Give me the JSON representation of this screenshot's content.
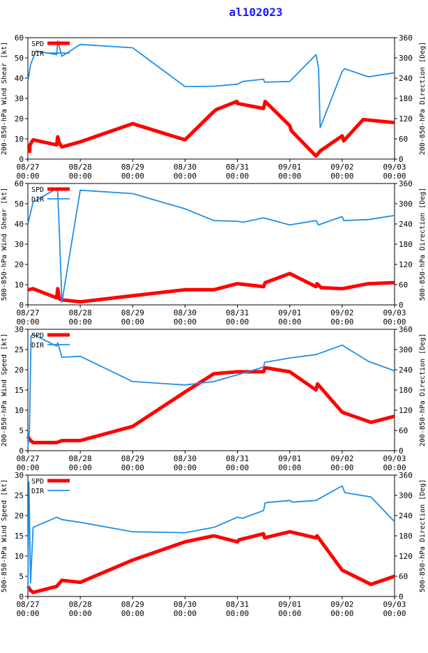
{
  "title": "al102023",
  "colors": {
    "spd": "#ff0000",
    "dir": "#1e8fe6",
    "title": "#1a1aff",
    "axis": "#000000"
  },
  "legend": {
    "spd": "SPD",
    "dir": "DIR"
  },
  "x_ticks": [
    {
      "d": 0,
      "l1": "08/27",
      "l2": "00:00"
    },
    {
      "d": 1,
      "l1": "08/28",
      "l2": "00:00"
    },
    {
      "d": 2,
      "l1": "08/29",
      "l2": "00:00"
    },
    {
      "d": 3,
      "l1": "08/30",
      "l2": "00:00"
    },
    {
      "d": 4,
      "l1": "08/31",
      "l2": "00:00"
    },
    {
      "d": 5,
      "l1": "09/01",
      "l2": "00:00"
    },
    {
      "d": 6,
      "l1": "09/02",
      "l2": "00:00"
    },
    {
      "d": 7,
      "l1": "09/03",
      "l2": "00:00"
    }
  ],
  "chart_data": [
    {
      "type": "line",
      "ylabel_left": "200-850-hPa Wind Shear [kt]",
      "ylabel_right": "200-850-hPa Direction [Deg]",
      "ylim_left": [
        0,
        60
      ],
      "yticks_left": [
        0,
        10,
        20,
        30,
        40,
        50,
        60
      ],
      "ylim_right": [
        0,
        360
      ],
      "yticks_right": [
        0,
        60,
        120,
        180,
        240,
        300,
        360
      ],
      "xlim": [
        0,
        7
      ],
      "series": [
        {
          "name": "SPD",
          "axis": "left",
          "points": [
            [
              0.03,
              3
            ],
            [
              0.04,
              7
            ],
            [
              0.1,
              9.5
            ],
            [
              0.55,
              7
            ],
            [
              0.57,
              11
            ],
            [
              0.6,
              8
            ],
            [
              0.65,
              6
            ],
            [
              1.0,
              8.5
            ],
            [
              2.0,
              17.5
            ],
            [
              3.0,
              9.5
            ],
            [
              3.55,
              23.5
            ],
            [
              3.6,
              24.5
            ],
            [
              3.99,
              28.5
            ],
            [
              4.0,
              27.5
            ],
            [
              4.5,
              25
            ],
            [
              4.53,
              28.5
            ],
            [
              5.0,
              16.5
            ],
            [
              5.03,
              14
            ],
            [
              5.5,
              1.5
            ],
            [
              5.58,
              4
            ],
            [
              6.0,
              11.5
            ],
            [
              6.03,
              9
            ],
            [
              6.4,
              19.5
            ],
            [
              7.0,
              18
            ]
          ]
        },
        {
          "name": "DIR",
          "axis": "right",
          "points": [
            [
              0.0,
              230
            ],
            [
              0.05,
              280
            ],
            [
              0.15,
              320
            ],
            [
              0.55,
              310
            ],
            [
              0.57,
              350
            ],
            [
              0.65,
              305
            ],
            [
              1.0,
              340
            ],
            [
              2.0,
              330
            ],
            [
              3.0,
              215
            ],
            [
              3.55,
              216
            ],
            [
              4.0,
              222
            ],
            [
              4.1,
              230
            ],
            [
              4.5,
              237
            ],
            [
              4.52,
              228
            ],
            [
              5.0,
              230
            ],
            [
              5.5,
              310
            ],
            [
              5.55,
              270
            ],
            [
              5.58,
              93
            ],
            [
              6.0,
              260
            ],
            [
              6.05,
              268
            ],
            [
              6.5,
              244
            ],
            [
              7.0,
              256
            ]
          ]
        }
      ]
    },
    {
      "type": "line",
      "ylabel_left": "500-850-hPa Wind Shear [kt]",
      "ylabel_right": "500-850-hPa Direction [Deg]",
      "ylim_left": [
        0,
        60
      ],
      "yticks_left": [
        0,
        10,
        20,
        30,
        40,
        50,
        60
      ],
      "ylim_right": [
        0,
        360
      ],
      "yticks_right": [
        0,
        60,
        120,
        180,
        240,
        300,
        360
      ],
      "xlim": [
        0,
        7
      ],
      "series": [
        {
          "name": "SPD",
          "axis": "left",
          "points": [
            [
              0.0,
              7.5
            ],
            [
              0.1,
              8
            ],
            [
              0.55,
              3.5
            ],
            [
              0.57,
              8
            ],
            [
              0.6,
              3
            ],
            [
              0.65,
              2.5
            ],
            [
              1.0,
              1.5
            ],
            [
              2.0,
              4.5
            ],
            [
              3.0,
              7.5
            ],
            [
              3.55,
              7.5
            ],
            [
              4.0,
              10.5
            ],
            [
              4.5,
              9
            ],
            [
              4.53,
              11
            ],
            [
              5.0,
              15.5
            ],
            [
              5.5,
              9
            ],
            [
              5.52,
              10.5
            ],
            [
              5.6,
              8.5
            ],
            [
              6.0,
              8
            ],
            [
              6.5,
              10.5
            ],
            [
              7.0,
              11
            ]
          ]
        },
        {
          "name": "DIR",
          "axis": "right",
          "points": [
            [
              0.0,
              240
            ],
            [
              0.1,
              305
            ],
            [
              0.55,
              345
            ],
            [
              0.57,
              335
            ],
            [
              0.6,
              220
            ],
            [
              0.65,
              8
            ],
            [
              1.0,
              340
            ],
            [
              2.0,
              330
            ],
            [
              3.0,
              285
            ],
            [
              3.55,
              250
            ],
            [
              4.0,
              248
            ],
            [
              4.1,
              245
            ],
            [
              4.5,
              258
            ],
            [
              5.0,
              237
            ],
            [
              5.5,
              250
            ],
            [
              5.55,
              237
            ],
            [
              6.0,
              262
            ],
            [
              6.03,
              250
            ],
            [
              6.5,
              253
            ],
            [
              7.0,
              265
            ]
          ]
        }
      ]
    },
    {
      "type": "line",
      "ylabel_left": "200-850-hPa Wind Speed [kt]",
      "ylabel_right": "200-850-hPa Direction [Deg]",
      "ylim_left": [
        0,
        30
      ],
      "yticks_left": [
        0,
        5,
        10,
        15,
        20,
        25,
        30
      ],
      "ylim_right": [
        0,
        360
      ],
      "yticks_right": [
        0,
        60,
        120,
        180,
        240,
        300,
        360
      ],
      "xlim": [
        0,
        7
      ],
      "series": [
        {
          "name": "SPD",
          "axis": "left",
          "points": [
            [
              0.0,
              3.5
            ],
            [
              0.05,
              2.5
            ],
            [
              0.1,
              2
            ],
            [
              0.55,
              2
            ],
            [
              0.65,
              2.5
            ],
            [
              1.0,
              2.5
            ],
            [
              2.0,
              6
            ],
            [
              3.0,
              14.5
            ],
            [
              3.55,
              19
            ],
            [
              4.0,
              19.5
            ],
            [
              4.5,
              19.5
            ],
            [
              4.53,
              20.5
            ],
            [
              5.0,
              19.5
            ],
            [
              5.5,
              15
            ],
            [
              5.53,
              16.5
            ],
            [
              6.0,
              9.5
            ],
            [
              6.55,
              7
            ],
            [
              7.0,
              8.5
            ]
          ]
        },
        {
          "name": "DIR",
          "axis": "right",
          "points": [
            [
              0.0,
              10
            ],
            [
              0.03,
              60
            ],
            [
              0.06,
              340
            ],
            [
              0.1,
              345
            ],
            [
              0.55,
              310
            ],
            [
              0.57,
              320
            ],
            [
              0.65,
              277
            ],
            [
              1.0,
              280
            ],
            [
              2.0,
              205
            ],
            [
              3.0,
              195
            ],
            [
              3.55,
              205
            ],
            [
              4.0,
              225
            ],
            [
              4.5,
              248
            ],
            [
              4.52,
              262
            ],
            [
              5.0,
              275
            ],
            [
              5.5,
              285
            ],
            [
              6.0,
              313
            ],
            [
              6.5,
              265
            ],
            [
              7.0,
              237
            ]
          ]
        }
      ]
    },
    {
      "type": "line",
      "ylabel_left": "500-850-hPa Wind Speed [kt]",
      "ylabel_right": "500-850-hPa Direction [Deg]",
      "ylim_left": [
        0,
        30
      ],
      "yticks_left": [
        0,
        5,
        10,
        15,
        20,
        25,
        30
      ],
      "ylim_right": [
        0,
        360
      ],
      "yticks_right": [
        0,
        60,
        120,
        180,
        240,
        300,
        360
      ],
      "xlim": [
        0,
        7
      ],
      "series": [
        {
          "name": "SPD",
          "axis": "left",
          "points": [
            [
              0.0,
              2.5
            ],
            [
              0.05,
              1.5
            ],
            [
              0.1,
              1
            ],
            [
              0.55,
              2.5
            ],
            [
              0.65,
              4
            ],
            [
              1.0,
              3.5
            ],
            [
              2.0,
              9
            ],
            [
              3.0,
              13.5
            ],
            [
              3.55,
              15
            ],
            [
              4.0,
              13.5
            ],
            [
              4.03,
              14
            ],
            [
              4.5,
              15.5
            ],
            [
              4.52,
              14.5
            ],
            [
              5.0,
              16
            ],
            [
              5.5,
              14.5
            ],
            [
              5.52,
              15
            ],
            [
              6.0,
              6.5
            ],
            [
              6.55,
              3
            ],
            [
              7.0,
              5
            ]
          ]
        },
        {
          "name": "DIR",
          "axis": "right",
          "points": [
            [
              0.0,
              15
            ],
            [
              0.02,
              340
            ],
            [
              0.05,
              40
            ],
            [
              0.1,
              205
            ],
            [
              0.55,
              235
            ],
            [
              0.65,
              228
            ],
            [
              1.0,
              220
            ],
            [
              2.0,
              192
            ],
            [
              3.0,
              189
            ],
            [
              3.55,
              205
            ],
            [
              4.0,
              235
            ],
            [
              4.1,
              232
            ],
            [
              4.5,
              255
            ],
            [
              4.53,
              278
            ],
            [
              5.0,
              285
            ],
            [
              5.05,
              280
            ],
            [
              5.5,
              285
            ],
            [
              6.0,
              328
            ],
            [
              6.05,
              308
            ],
            [
              6.55,
              295
            ],
            [
              7.0,
              222
            ]
          ]
        }
      ]
    }
  ]
}
